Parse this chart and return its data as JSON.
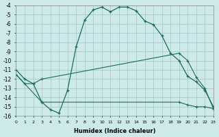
{
  "xlabel": "Humidex (Indice chaleur)",
  "background_color": "#cde9e9",
  "grid_color": "#a0c4c4",
  "line_color": "#1a6b5a",
  "curve1_x": [
    0,
    1,
    2,
    3,
    4,
    5,
    6,
    7,
    8,
    9,
    10,
    11,
    12,
    13,
    14,
    15,
    16,
    17,
    18,
    19,
    20,
    21,
    22,
    23
  ],
  "curve1_y": [
    -11,
    -12,
    -12.5,
    -14.5,
    -15.3,
    -15.7,
    -13.2,
    -8.5,
    -5.6,
    -4.5,
    -4.2,
    -4.7,
    -4.2,
    -4.2,
    -4.6,
    -5.7,
    -6.1,
    -7.3,
    -9.2,
    -10.0,
    -11.7,
    -12.3,
    -13.2,
    -15.0
  ],
  "curve2_x": [
    0,
    1,
    2,
    3,
    19,
    20,
    21,
    22,
    23
  ],
  "curve2_y": [
    -11.5,
    -12.5,
    -12.5,
    -12.0,
    -9.2,
    -10.0,
    -11.8,
    -13.0,
    -15.2
  ],
  "curve3_x": [
    0,
    3,
    19,
    20,
    21,
    22,
    23
  ],
  "curve3_y": [
    -11.5,
    -14.5,
    -14.5,
    -14.8,
    -15.0,
    -15.0,
    -15.2
  ],
  "xlim": [
    0,
    23
  ],
  "ylim": [
    -16,
    -4
  ],
  "yticks": [
    -4,
    -5,
    -6,
    -7,
    -8,
    -9,
    -10,
    -11,
    -12,
    -13,
    -14,
    -15,
    -16
  ],
  "xticks": [
    0,
    1,
    2,
    3,
    4,
    5,
    6,
    7,
    8,
    9,
    10,
    11,
    12,
    13,
    14,
    15,
    16,
    17,
    18,
    19,
    20,
    21,
    22,
    23
  ]
}
